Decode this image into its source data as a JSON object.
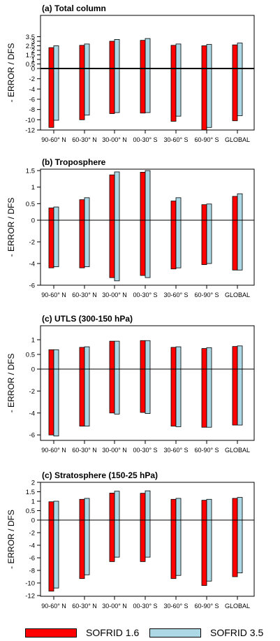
{
  "colors": {
    "sofrid16": "#ff0000",
    "sofrid35": "#add8e6"
  },
  "legend": [
    {
      "name": "SOFRID 1.6",
      "color": "#ff0000"
    },
    {
      "name": "SOFRID 3.5",
      "color": "#add8e6"
    }
  ],
  "chart_data": [
    {
      "type": "bar",
      "title": "(a) Total column",
      "ylabel": "- ERROR / DFS",
      "categories": [
        "90-60° N",
        "60-30° N",
        "30-00° N",
        "00-30° S",
        "30-60° S",
        "60-90° S",
        "GLOBAL"
      ],
      "y_ticks": [
        "3.5",
        "3",
        "2.5",
        "2",
        "1.5",
        "1",
        "0.5",
        "0",
        "-2",
        "-4",
        "-6",
        "-8",
        "-10",
        "-12"
      ],
      "series": [
        {
          "name": "SOFRID 1.6",
          "pos": [
            2.3,
            2.55,
            3.0,
            3.1,
            2.55,
            2.5,
            2.6
          ],
          "neg": [
            -11.5,
            -10.0,
            -8.8,
            -8.7,
            -10.3,
            -12.0,
            -10.2
          ]
        },
        {
          "name": "SOFRID 3.5",
          "pos": [
            2.5,
            2.7,
            3.2,
            3.3,
            2.7,
            2.65,
            2.8
          ],
          "neg": [
            -10.1,
            -9.1,
            -8.6,
            -8.6,
            -9.3,
            -11.5,
            -9.2
          ]
        }
      ]
    },
    {
      "type": "bar",
      "title": "(b) Troposphere",
      "ylabel": "- ERROR / DFS",
      "categories": [
        "90-60° N",
        "60-30° N",
        "30-00° N",
        "00-30° S",
        "30-60° S",
        "60-90° S",
        "GLOBAL"
      ],
      "y_ticks": [
        "1.5",
        "1",
        "0.5",
        "0",
        "-2",
        "-4",
        "-6"
      ],
      "series": [
        {
          "name": "SOFRID 1.6",
          "pos": [
            0.37,
            0.62,
            1.37,
            1.45,
            0.58,
            0.47,
            0.72
          ],
          "neg": [
            -4.4,
            -4.4,
            -5.3,
            -5.1,
            -4.5,
            -4.1,
            -4.6
          ]
        },
        {
          "name": "SOFRID 3.5",
          "pos": [
            0.4,
            0.68,
            1.46,
            1.5,
            0.68,
            0.49,
            0.8
          ],
          "neg": [
            -4.3,
            -4.3,
            -5.6,
            -5.3,
            -4.4,
            -4.0,
            -4.6
          ]
        }
      ]
    },
    {
      "type": "bar",
      "title": "(c) UTLS (300-150 hPa)",
      "ylabel": "- ERROR / DFS",
      "categories": [
        "90-60° N",
        "60-30° N",
        "30-00° N",
        "00-30° S",
        "30-60° S",
        "60-90° S",
        "GLOBAL"
      ],
      "y_ticks": [
        "1",
        "0.5",
        "0",
        "-2",
        "-4",
        "-6"
      ],
      "series": [
        {
          "name": "SOFRID 1.6",
          "pos": [
            0.66,
            0.74,
            0.95,
            0.97,
            0.74,
            0.7,
            0.77
          ],
          "neg": [
            -6.0,
            -5.2,
            -4.0,
            -3.95,
            -5.2,
            -5.3,
            -5.1
          ]
        },
        {
          "name": "SOFRID 3.5",
          "pos": [
            0.66,
            0.76,
            0.95,
            0.97,
            0.76,
            0.73,
            0.79
          ],
          "neg": [
            -6.1,
            -5.2,
            -4.1,
            -4.05,
            -5.25,
            -5.3,
            -5.1
          ]
        }
      ]
    },
    {
      "type": "bar",
      "title": "(c) Stratosphere (150-25 hPa)",
      "ylabel": "- ERROR / DFS",
      "categories": [
        "90-60° N",
        "60-30° N",
        "30-00° N",
        "00-30° S",
        "30-60° S",
        "60-90° S",
        "GLOBAL"
      ],
      "y_ticks": [
        "2",
        "1.5",
        "1",
        "0.5",
        "0",
        "-2",
        "-4",
        "-6",
        "-8",
        "-10",
        "-12"
      ],
      "series": [
        {
          "name": "SOFRID 1.6",
          "pos": [
            0.97,
            1.1,
            1.43,
            1.42,
            1.1,
            1.05,
            1.15
          ],
          "neg": [
            -11.3,
            -9.3,
            -6.6,
            -6.6,
            -9.3,
            -10.4,
            -9.0
          ]
        },
        {
          "name": "SOFRID 3.5",
          "pos": [
            1.0,
            1.15,
            1.53,
            1.55,
            1.15,
            1.1,
            1.2
          ],
          "neg": [
            -10.8,
            -8.7,
            -5.9,
            -5.9,
            -8.8,
            -9.7,
            -8.4
          ]
        }
      ]
    }
  ]
}
